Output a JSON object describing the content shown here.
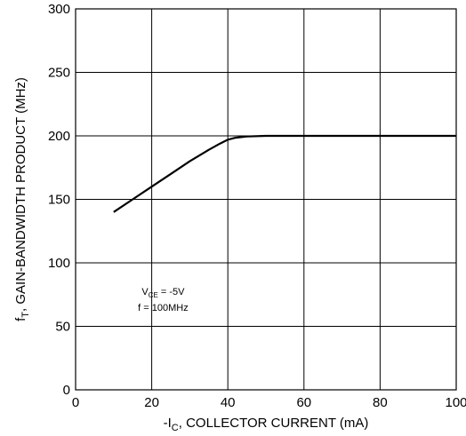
{
  "chart_data": {
    "type": "line",
    "title": "",
    "xlabel": {
      "prefix": "-I",
      "sub": "C",
      "suffix": ", COLLECTOR CURRENT (mA)"
    },
    "ylabel": {
      "prefix": "f",
      "sub": "T",
      "suffix": ", GAIN-BANDWIDTH PRODUCT (MHz)"
    },
    "xlim": [
      0,
      100
    ],
    "ylim": [
      0,
      300
    ],
    "xticks": [
      0,
      20,
      40,
      60,
      80,
      100
    ],
    "yticks": [
      0,
      50,
      100,
      150,
      200,
      250,
      300
    ],
    "grid": true,
    "series": [
      {
        "x": [
          10,
          15,
          20,
          25,
          30,
          35,
          38,
          40,
          42,
          45,
          50,
          60,
          80,
          100
        ],
        "y": [
          140,
          150,
          160,
          170,
          180,
          189,
          194,
          197,
          198.5,
          199.5,
          200,
          200,
          200,
          200
        ]
      }
    ],
    "annotation": {
      "line1_prefix": "V",
      "line1_sub": "CE",
      "line1_suffix": " = -5V",
      "line2": "f = 100MHz",
      "x": 23,
      "y": 75
    },
    "colors": {
      "line": "#000000",
      "grid": "#000000",
      "background": "#ffffff"
    }
  }
}
